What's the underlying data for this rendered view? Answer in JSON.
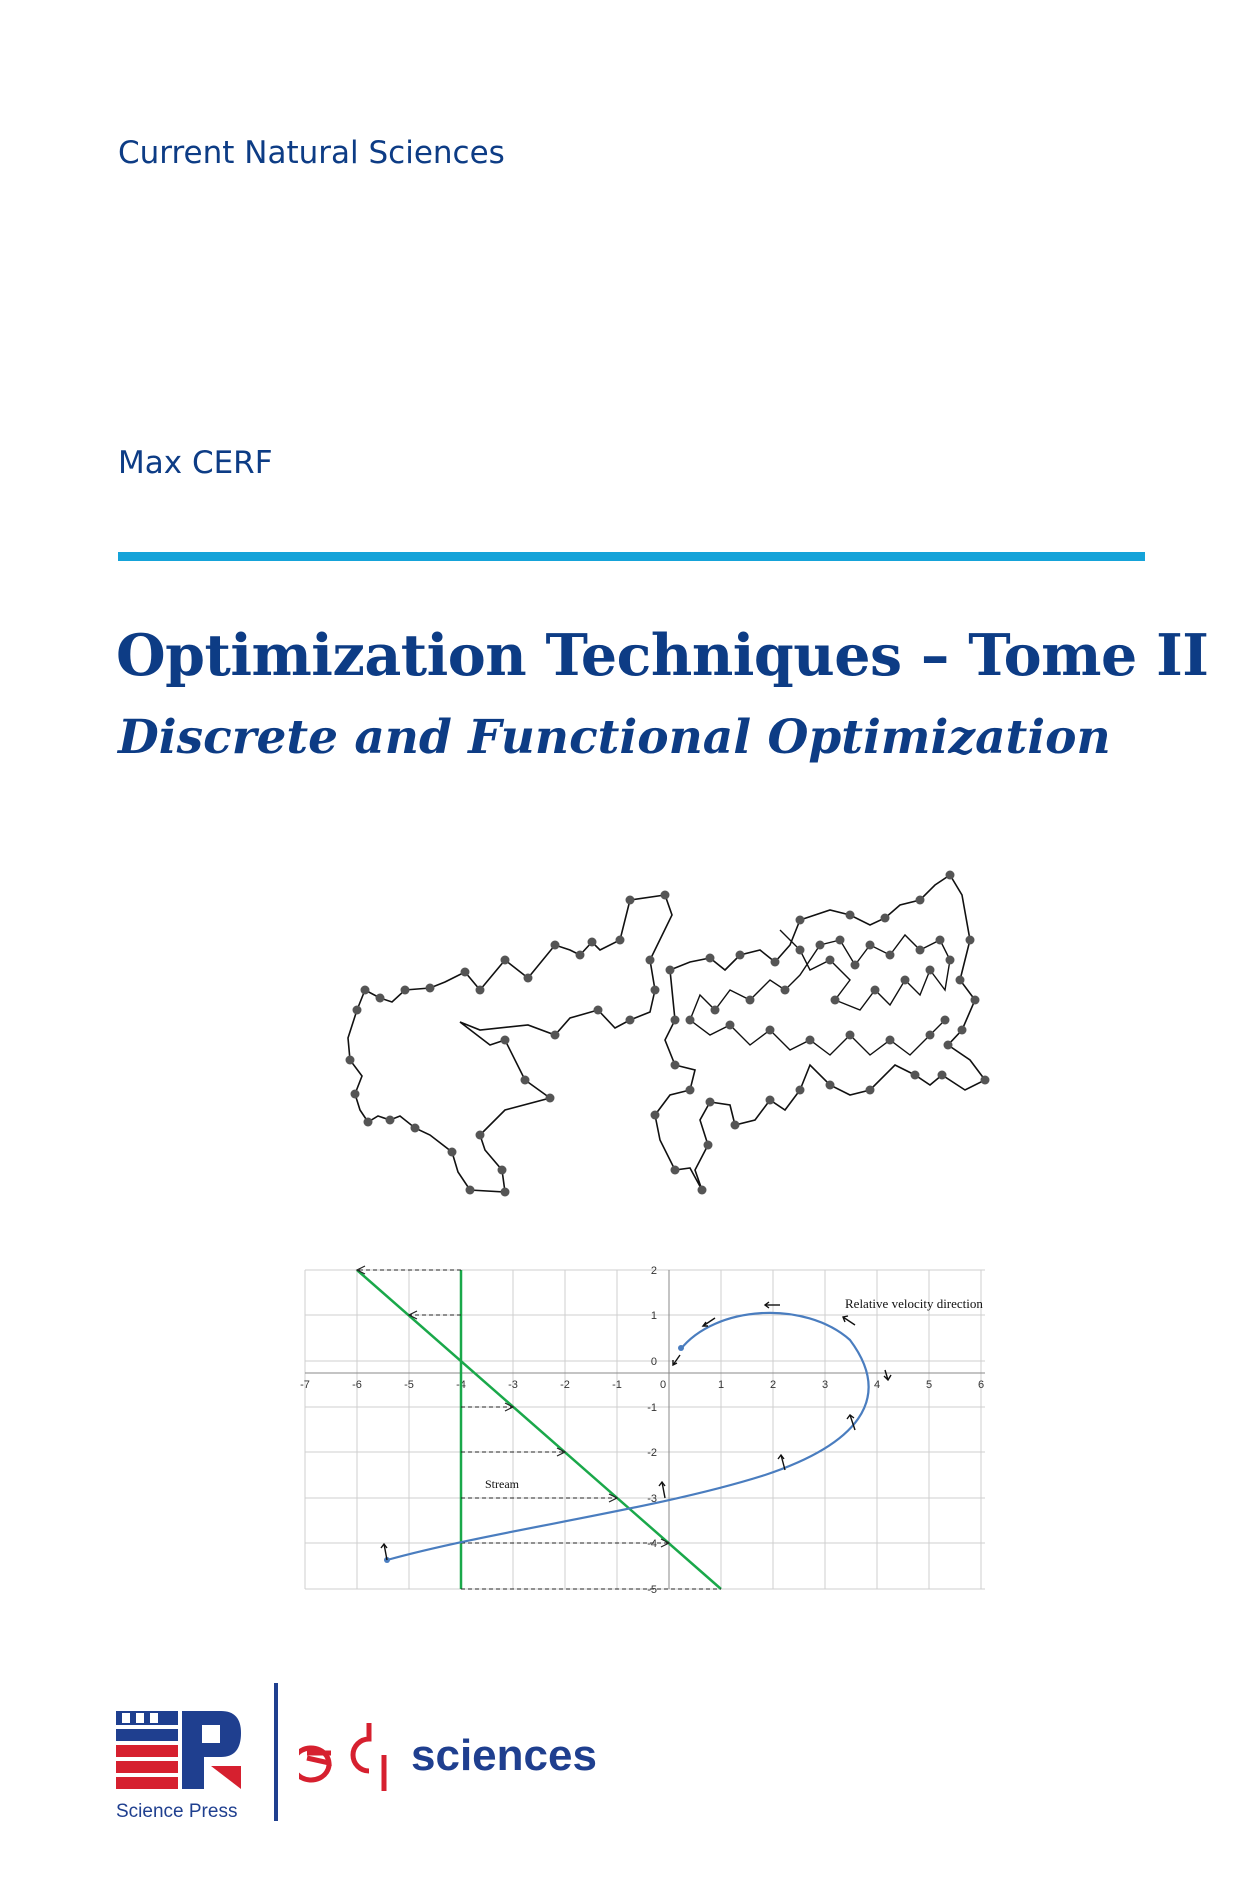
{
  "series": "Current Natural Sciences",
  "author": "Max CERF",
  "title": "Optimization Techniques – Tome II",
  "subtitle": "Discrete and Functional Optimization",
  "figure_plot": {
    "x_ticks": [
      "-7",
      "-6",
      "-5",
      "-4",
      "-3",
      "-2",
      "-1",
      "0",
      "1",
      "2",
      "3",
      "4",
      "5",
      "6"
    ],
    "y_ticks": [
      "2",
      "1",
      "0",
      "-1",
      "-2",
      "-3",
      "-4",
      "-5"
    ],
    "annotation_velocity": "Relative velocity direction",
    "annotation_stream": "Stream"
  },
  "publishers": {
    "sp_caption": "Science Press",
    "edp_word": "sciences"
  },
  "colors": {
    "brand_blue": "#0d3c85",
    "rule_cyan": "#15a3d9",
    "edp_red": "#d6202f",
    "sp_blue": "#1f3f8f",
    "curve_blue": "#4a7dbf",
    "line_green": "#1aa84a"
  }
}
